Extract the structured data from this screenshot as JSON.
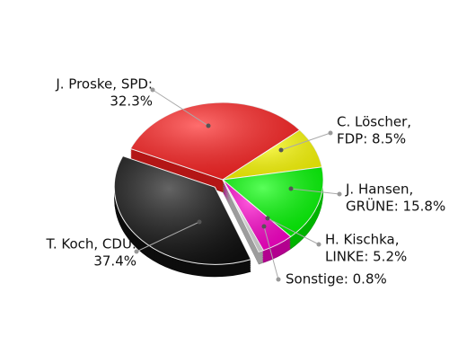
{
  "chart_data": {
    "type": "pie",
    "labels": [
      [
        "J. Proske, SPD:",
        "32.3%"
      ],
      [
        "C. Löscher,",
        "FDP: 8.5%"
      ],
      [
        "J. Hansen,",
        "GRÜNE: 15.8%"
      ],
      [
        "H. Kischka,",
        "LINKE: 5.2%"
      ],
      [
        "Sonstige: 0.8%"
      ],
      [
        "T. Koch, CDU:",
        "37.4%"
      ]
    ],
    "values": [
      32.3,
      8.5,
      15.8,
      5.2,
      0.8,
      37.4
    ],
    "colors": [
      "#ff1f1f",
      "#ffff00",
      "#00ff00",
      "#ff00cc",
      "#e0e0e0",
      "#111111"
    ]
  }
}
